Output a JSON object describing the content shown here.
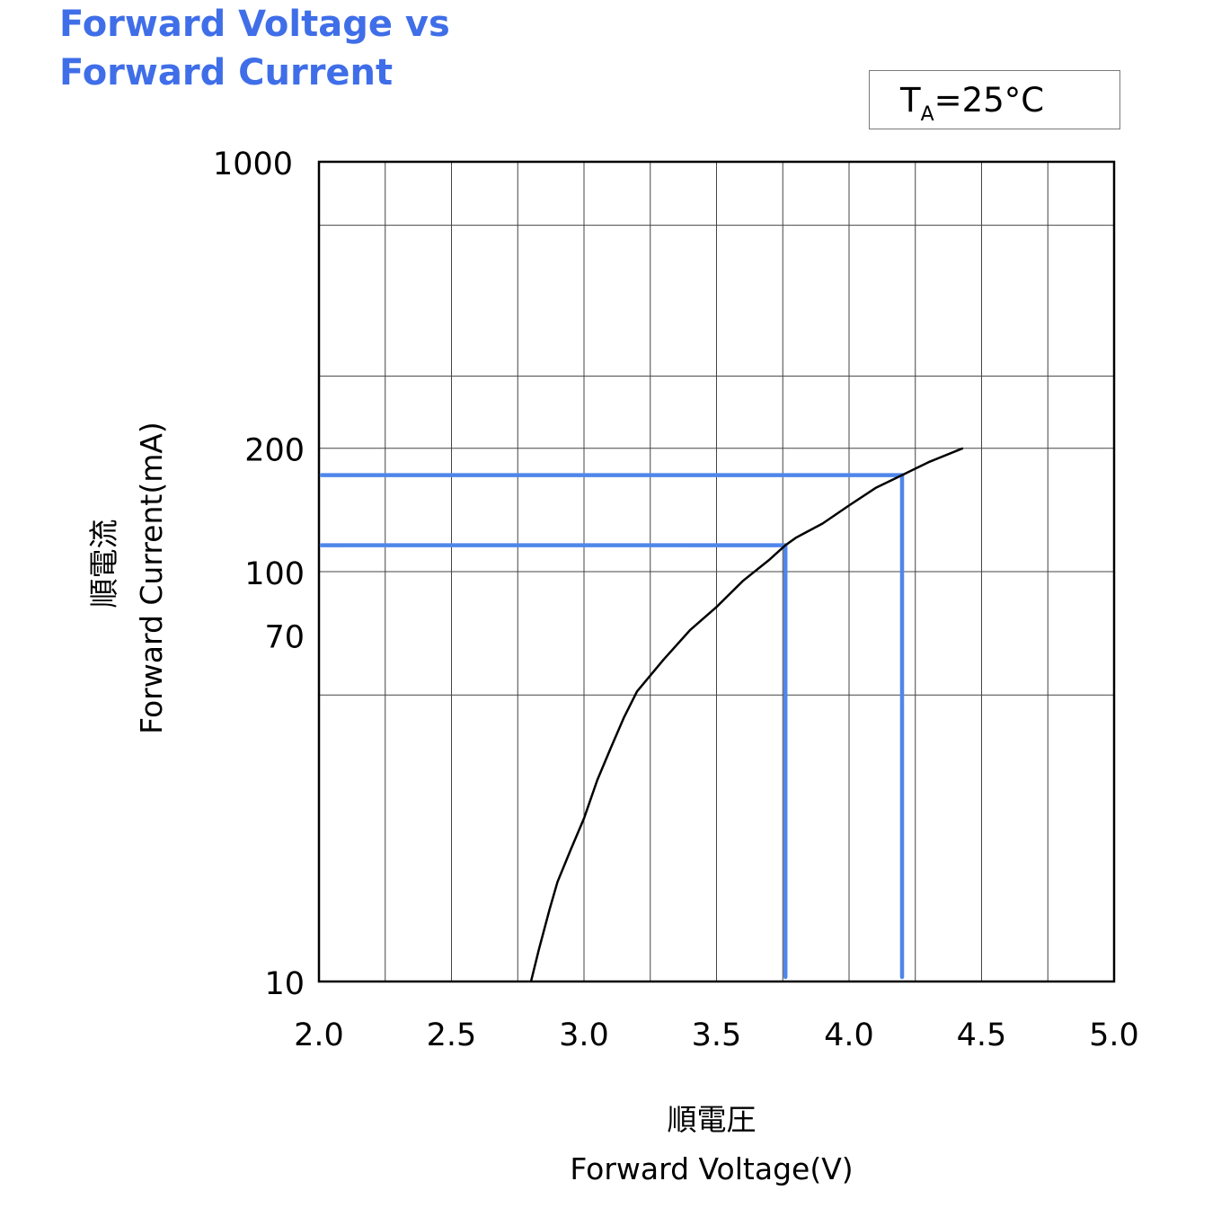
{
  "title": {
    "line1": "Forward Voltage vs",
    "line2": "Forward Current"
  },
  "condition": {
    "symbol": "T",
    "subscript": "A",
    "value": "=25°C"
  },
  "colors": {
    "title": "#3f6ee8",
    "curve": "#000000",
    "annotation": "#4f86ea",
    "grid": "#444444"
  },
  "chart_data": {
    "type": "line",
    "x_scale": "linear",
    "y_scale": "log",
    "xlim": [
      2.0,
      5.0
    ],
    "ylim": [
      10,
      1000
    ],
    "x_ticks": [
      "2.0",
      "2.5",
      "3.0",
      "3.5",
      "4.0",
      "4.5",
      "5.0"
    ],
    "x_tick_values": [
      2.0,
      2.5,
      3.0,
      3.5,
      4.0,
      4.5,
      5.0
    ],
    "y_ticks": [
      "10",
      "70",
      "100",
      "200",
      "1000"
    ],
    "y_tick_values": [
      10,
      70,
      100,
      200,
      1000
    ],
    "y_gridlines": [
      50,
      100,
      200,
      300,
      700,
      1000
    ],
    "x_gridlines": [
      2.25,
      2.5,
      2.75,
      3.0,
      3.25,
      3.5,
      3.75,
      4.0,
      4.25,
      4.5,
      4.75
    ],
    "xlabel_jp": "順電圧",
    "xlabel": "Forward Voltage(V)",
    "ylabel_jp": "順電流",
    "ylabel": "Forward Current(mA)",
    "grid": true,
    "series": [
      {
        "x": [
          2.8,
          2.83,
          2.87,
          2.9,
          2.95,
          3.0,
          3.05,
          3.1,
          3.15,
          3.2,
          3.3,
          3.4,
          3.5,
          3.6,
          3.7,
          3.76,
          3.8,
          3.9,
          4.0,
          4.1,
          4.2,
          4.3,
          4.43
        ],
        "y": [
          10,
          12,
          15,
          17.5,
          21,
          25,
          31,
          37,
          44,
          51,
          61,
          72,
          82,
          95,
          107,
          116,
          121,
          131,
          145,
          160,
          172,
          185,
          200
        ]
      }
    ],
    "annotations": [
      {
        "type": "hline",
        "y": 116,
        "x_end": 3.76
      },
      {
        "type": "vline",
        "x": 3.76,
        "y_top": 116
      },
      {
        "type": "hline",
        "y": 172,
        "x_end": 4.2
      },
      {
        "type": "vline",
        "x": 4.2,
        "y_top": 172
      }
    ]
  }
}
